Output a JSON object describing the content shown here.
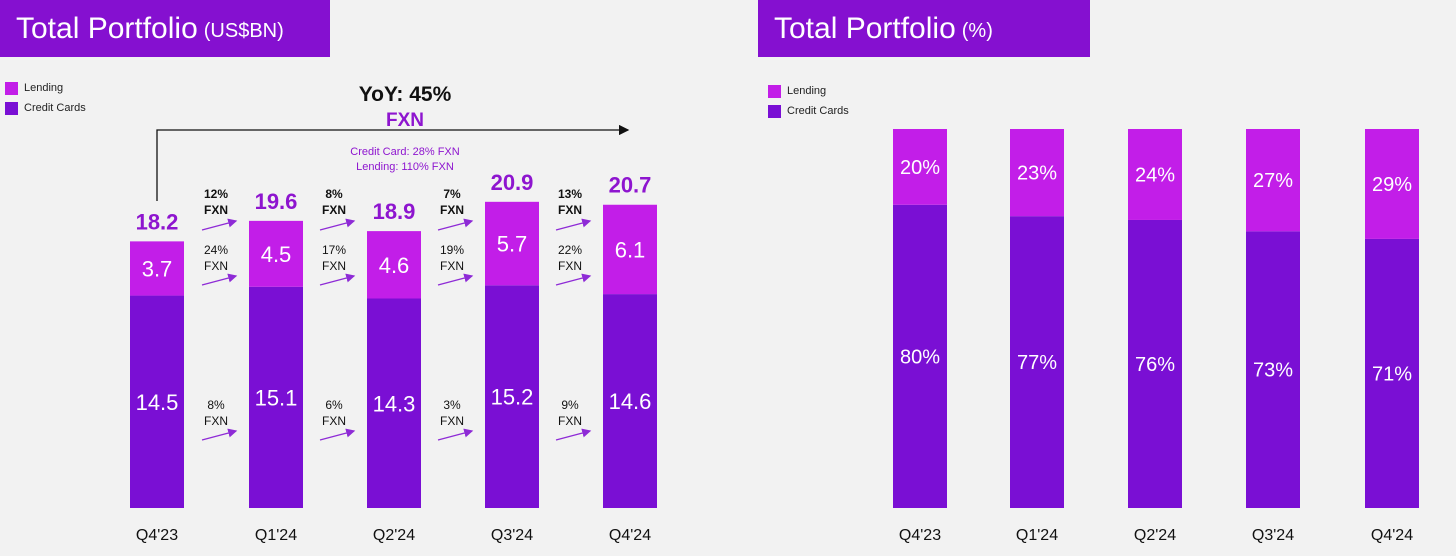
{
  "colors": {
    "lending": "#c21ee8",
    "credit_cards": "#7a0fd4",
    "header_bg": "#8510d0",
    "total_label": "#8e15cf",
    "arrow": "#8e2bd6"
  },
  "left": {
    "title": "Total Portfolio",
    "unit": "(US$BN)",
    "legend": [
      "Lending",
      "Credit Cards"
    ],
    "yoy_label": "YoY: 45%",
    "yoy_sub": "FXN",
    "yoy_note_1": "Credit Card: 28% FXN",
    "yoy_note_2": "Lending: 110% FXN"
  },
  "right": {
    "title": "Total Portfolio",
    "unit": "(%)",
    "legend": [
      "Lending",
      "Credit Cards"
    ]
  },
  "chart_data": [
    {
      "type": "bar",
      "stacked": true,
      "title": "Total Portfolio (US$BN)",
      "categories": [
        "Q4'23",
        "Q1'24",
        "Q2'24",
        "Q3'24",
        "Q4'24"
      ],
      "series": [
        {
          "name": "Credit Cards",
          "values": [
            14.5,
            15.1,
            14.3,
            15.2,
            14.6
          ],
          "labels": [
            "14.5",
            "15.1",
            "14.3",
            "15.2",
            "14.6"
          ]
        },
        {
          "name": "Lending",
          "values": [
            3.7,
            4.5,
            4.6,
            5.7,
            6.1
          ],
          "labels": [
            "3.7",
            "4.5",
            "4.6",
            "5.7",
            "6.1"
          ]
        }
      ],
      "totals": [
        18.2,
        19.6,
        18.9,
        20.9,
        20.7
      ],
      "total_labels": [
        "18.2",
        "19.6",
        "18.9",
        "20.9",
        "20.7"
      ],
      "growth_total": [
        [
          "12%",
          "FXN"
        ],
        [
          "8%",
          "FXN"
        ],
        [
          "7%",
          "FXN"
        ],
        [
          "13%",
          "FXN"
        ]
      ],
      "growth_lending": [
        [
          "24%",
          "FXN"
        ],
        [
          "17%",
          "FXN"
        ],
        [
          "19%",
          "FXN"
        ],
        [
          "22%",
          "FXN"
        ]
      ],
      "growth_credit": [
        [
          "8%",
          "FXN"
        ],
        [
          "6%",
          "FXN"
        ],
        [
          "3%",
          "FXN"
        ],
        [
          "9%",
          "FXN"
        ]
      ],
      "ylim": [
        0,
        22.5
      ],
      "grid": false,
      "legend": "top-left"
    },
    {
      "type": "bar",
      "stacked": true,
      "title": "Total Portfolio (%)",
      "categories": [
        "Q4'23",
        "Q1'24",
        "Q2'24",
        "Q3'24",
        "Q4'24"
      ],
      "series": [
        {
          "name": "Credit Cards",
          "values": [
            80,
            77,
            76,
            73,
            71
          ],
          "labels": [
            "80%",
            "77%",
            "76%",
            "73%",
            "71%"
          ]
        },
        {
          "name": "Lending",
          "values": [
            20,
            23,
            24,
            27,
            29
          ],
          "labels": [
            "20%",
            "23%",
            "24%",
            "27%",
            "29%"
          ]
        }
      ],
      "ylim": [
        0,
        100
      ],
      "grid": false,
      "legend": "top-left"
    }
  ]
}
